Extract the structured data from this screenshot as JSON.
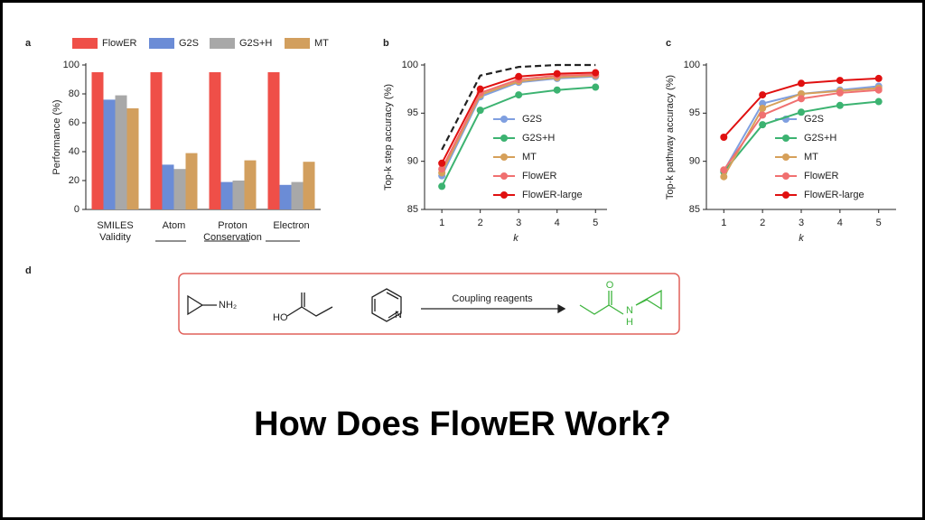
{
  "chart_data": [
    {
      "type": "bar",
      "panel": "a",
      "ylabel": "Performance (%)",
      "legend": "top",
      "categories": [
        "SMILES Validity",
        "Atom",
        "Proton Conservation",
        "Electron"
      ],
      "ylim": [
        0,
        100
      ],
      "yticks": [
        0,
        20,
        40,
        60,
        80,
        100
      ],
      "series": [
        {
          "name": "FlowER",
          "color": "#ef4f48",
          "values": [
            95,
            95,
            95,
            95
          ]
        },
        {
          "name": "G2S",
          "color": "#6b8cd6",
          "values": [
            76,
            31,
            19,
            17
          ]
        },
        {
          "name": "G2S+H",
          "color": "#a8a8a8",
          "values": [
            79,
            28,
            20,
            19
          ]
        },
        {
          "name": "MT",
          "color": "#d29f5e",
          "values": [
            70,
            39,
            34,
            33
          ]
        }
      ]
    },
    {
      "type": "line",
      "panel": "b",
      "ylabel": "Top-k step accuracy (%)",
      "xlabel": "k",
      "legend": "center",
      "x": [
        1,
        2,
        3,
        4,
        5
      ],
      "xlim": [
        0.55,
        5.3
      ],
      "xticks": [
        1,
        2,
        3,
        4,
        5
      ],
      "ylim": [
        85,
        100
      ],
      "yticks": [
        85,
        90,
        95,
        100
      ],
      "series": [
        {
          "color": "#222222",
          "dashed": true,
          "values": [
            91.2,
            98.9,
            99.8,
            100,
            100
          ]
        },
        {
          "name": "G2S",
          "color": "#7f9fe0",
          "values": [
            88.5,
            96.7,
            98.2,
            98.6,
            98.8
          ]
        },
        {
          "name": "G2S+H",
          "color": "#3cb371",
          "values": [
            87.4,
            95.3,
            96.9,
            97.4,
            97.7
          ]
        },
        {
          "name": "MT",
          "color": "#d6a05a",
          "values": [
            88.8,
            96.9,
            98.3,
            98.7,
            98.9
          ]
        },
        {
          "name": "FlowER",
          "color": "#f07070",
          "values": [
            89.2,
            97.1,
            98.5,
            98.9,
            99.0
          ]
        },
        {
          "name": "FlowER-large",
          "color": "#e01010",
          "values": [
            89.8,
            97.5,
            98.8,
            99.1,
            99.2
          ]
        }
      ]
    },
    {
      "type": "line",
      "panel": "c",
      "ylabel": "Top-k pathway accuracy (%)",
      "xlabel": "k",
      "legend": "center",
      "x": [
        1,
        2,
        3,
        4,
        5
      ],
      "xlim": [
        0.55,
        5.45
      ],
      "xticks": [
        1,
        2,
        3,
        4,
        5
      ],
      "ylim": [
        85,
        100
      ],
      "yticks": [
        85,
        90,
        95,
        100
      ],
      "series": [
        {
          "name": "G2S",
          "color": "#7f9fe0",
          "values": [
            89.0,
            96.0,
            97.0,
            97.4,
            97.8
          ]
        },
        {
          "name": "G2S+H",
          "color": "#3cb371",
          "values": [
            88.9,
            93.8,
            95.1,
            95.8,
            96.2
          ]
        },
        {
          "name": "MT",
          "color": "#d6a05a",
          "values": [
            88.4,
            95.5,
            97.0,
            97.3,
            97.6
          ]
        },
        {
          "name": "FlowER",
          "color": "#f07070",
          "values": [
            89.1,
            94.8,
            96.5,
            97.1,
            97.4
          ]
        },
        {
          "name": "FlowER-large",
          "color": "#e01010",
          "values": [
            92.5,
            96.9,
            98.1,
            98.4,
            98.6
          ]
        }
      ]
    }
  ],
  "diagram": {
    "panel": "d",
    "amine": "NH₂",
    "acid": "HO",
    "pyridine": "N",
    "arrow_label": "Coupling reagents",
    "product_o": "O",
    "product_n": "N",
    "product_h": "H"
  },
  "heading": "How Does FlowER Work?"
}
